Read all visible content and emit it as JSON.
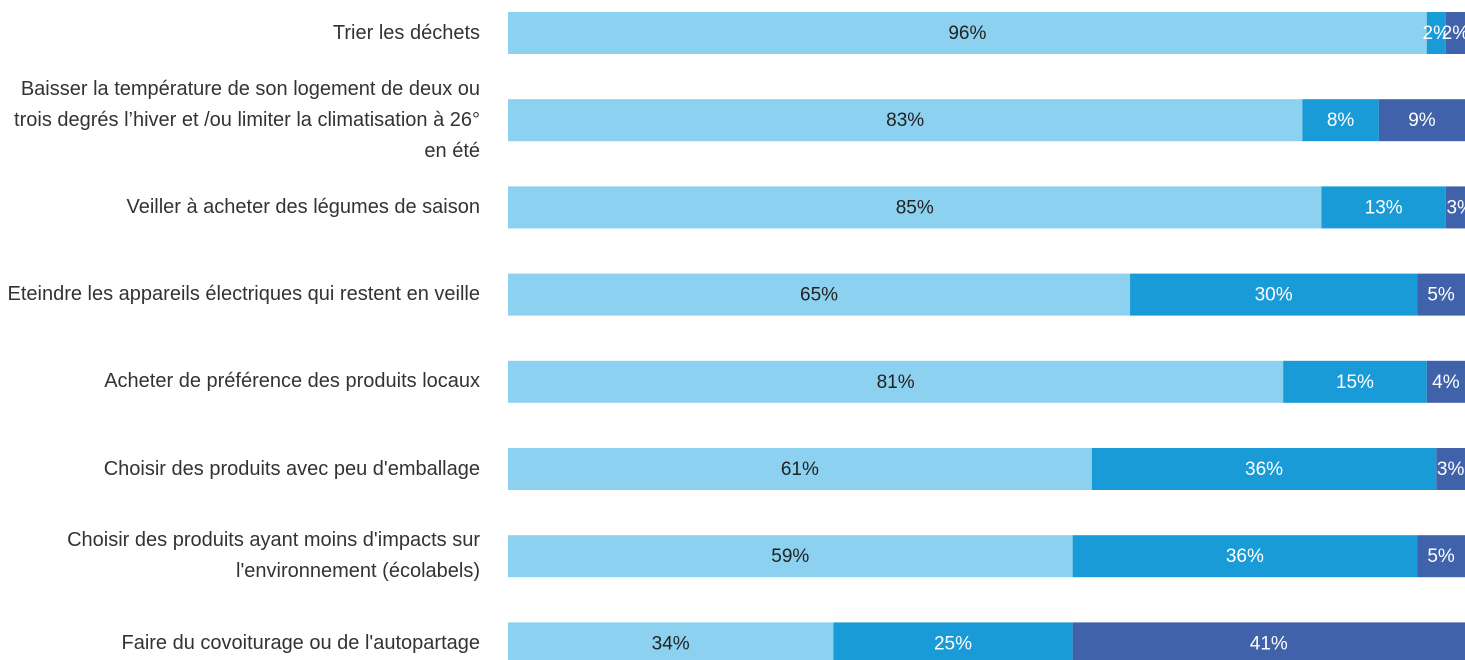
{
  "chart_data": {
    "type": "stacked-barh",
    "categories": [
      "Trier les déchets",
      "Baisser la température de son logement de deux ou trois degrés l’hiver et /ou limiter la climatisation à 26° en été",
      "Veiller à acheter des légumes de saison",
      "Eteindre les appareils électriques qui restent en veille",
      "Acheter de préférence des produits locaux",
      "Choisir des produits avec peu d'emballage",
      "Choisir des produits ayant moins d'impacts sur l'environnement (écolabels)",
      "Faire du covoiturage ou de l'autopartage"
    ],
    "series": [
      {
        "color": "#8dd1f0",
        "values": [
          96,
          83,
          85,
          65,
          81,
          61,
          59,
          34
        ],
        "value_labels": [
          "96%",
          "83%",
          "85%",
          "65%",
          "81%",
          "61%",
          "59%",
          "34%"
        ]
      },
      {
        "color": "#199bd7",
        "values": [
          2,
          8,
          13,
          30,
          15,
          36,
          36,
          25
        ],
        "value_labels": [
          "2%",
          "8%",
          "13%",
          "30%",
          "15%",
          "36%",
          "36%",
          "25%"
        ]
      },
      {
        "color": "#3f62ab",
        "values": [
          2,
          9,
          3,
          5,
          4,
          3,
          5,
          41
        ],
        "value_labels": [
          "2%",
          "9%",
          "3%",
          "5%",
          "4%",
          "3%",
          "5%",
          "41%"
        ]
      }
    ],
    "xlim": [
      0,
      100
    ]
  }
}
